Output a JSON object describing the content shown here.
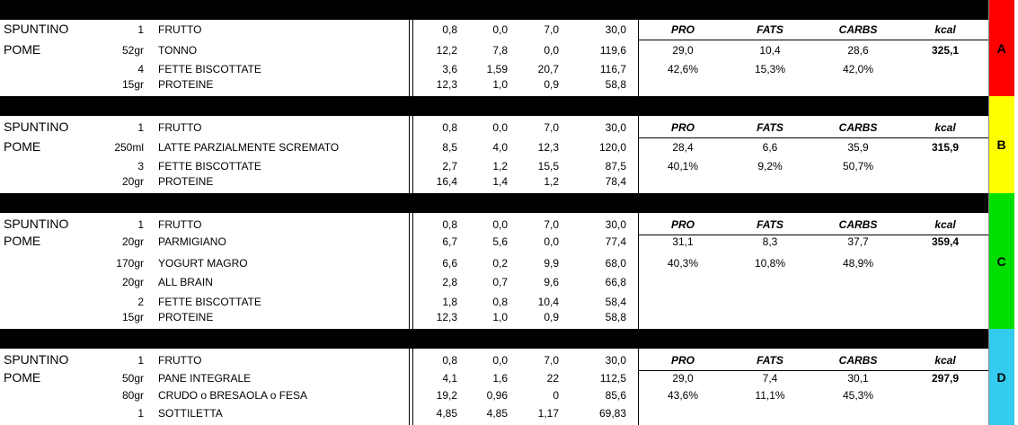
{
  "blocks": [
    {
      "label1": "SPUNTINO",
      "label2": "POME",
      "letter": "A",
      "rows": [
        [
          "1",
          "FRUTTO",
          "0,8",
          "0,0",
          "7,0",
          "30,0"
        ],
        [
          "52gr",
          "TONNO",
          "12,2",
          "7,8",
          "0,0",
          "119,6"
        ],
        [
          "4",
          "FETTE BISCOTTATE",
          "3,6",
          "1,59",
          "20,7",
          "116,7"
        ],
        [
          "15gr",
          "PROTEINE",
          "12,3",
          "1,0",
          "0,9",
          "58,8"
        ]
      ],
      "summary": {
        "headers": [
          "PRO",
          "FATS",
          "CARBS",
          "kcal"
        ],
        "values": [
          "29,0",
          "10,4",
          "28,6",
          "325,1"
        ],
        "percents": [
          "42,6%",
          "15,3%",
          "42,0%"
        ]
      }
    },
    {
      "label1": "SPUNTINO",
      "label2": "POME",
      "letter": "B",
      "rows": [
        [
          "1",
          "FRUTTO",
          "0,8",
          "0,0",
          "7,0",
          "30,0"
        ],
        [
          "250ml",
          "LATTE PARZIALMENTE SCREMATO",
          "8,5",
          "4,0",
          "12,3",
          "120,0"
        ],
        [
          "3",
          "FETTE BISCOTTATE",
          "2,7",
          "1,2",
          "15,5",
          "87,5"
        ],
        [
          "20gr",
          "PROTEINE",
          "16,4",
          "1,4",
          "1,2",
          "78,4"
        ]
      ],
      "summary": {
        "headers": [
          "PRO",
          "FATS",
          "CARBS",
          "kcal"
        ],
        "values": [
          "28,4",
          "6,6",
          "35,9",
          "315,9"
        ],
        "percents": [
          "40,1%",
          "9,2%",
          "50,7%"
        ]
      }
    },
    {
      "label1": "SPUNTINO",
      "label2": "POME",
      "letter": "C",
      "rows": [
        [
          "1",
          "FRUTTO",
          "0,8",
          "0,0",
          "7,0",
          "30,0"
        ],
        [
          "20gr",
          "PARMIGIANO",
          "6,7",
          "5,6",
          "0,0",
          "77,4"
        ],
        [
          "170gr",
          "YOGURT MAGRO",
          "6,6",
          "0,2",
          "9,9",
          "68,0"
        ],
        [
          "20gr",
          "ALL BRAIN",
          "2,8",
          "0,7",
          "9,6",
          "66,8"
        ],
        [
          "2",
          "FETTE BISCOTTATE",
          "1,8",
          "0,8",
          "10,4",
          "58,4"
        ],
        [
          "15gr",
          "PROTEINE",
          "12,3",
          "1,0",
          "0,9",
          "58,8"
        ]
      ],
      "summary": {
        "headers": [
          "PRO",
          "FATS",
          "CARBS",
          "kcal"
        ],
        "values": [
          "31,1",
          "8,3",
          "37,7",
          "359,4"
        ],
        "percents": [
          "40,3%",
          "10,8%",
          "48,9%"
        ]
      }
    },
    {
      "label1": "SPUNTINO",
      "label2": "POME",
      "letter": "D",
      "rows": [
        [
          "1",
          "FRUTTO",
          "0,8",
          "0,0",
          "7,0",
          "30,0"
        ],
        [
          "50gr",
          "PANE INTEGRALE",
          "4,1",
          "1,6",
          "22",
          "112,5"
        ],
        [
          "80gr",
          "CRUDO o BRESAOLA o FESA",
          "19,2",
          "0,96",
          "0",
          "85,6"
        ],
        [
          "1",
          "SOTTILETTA",
          "4,85",
          "4,85",
          "1,17",
          "69,83"
        ]
      ],
      "summary": {
        "headers": [
          "PRO",
          "FATS",
          "CARBS",
          "kcal"
        ],
        "values": [
          "29,0",
          "7,4",
          "30,1",
          "297,9"
        ],
        "percents": [
          "43,6%",
          "11,1%",
          "45,3%"
        ]
      }
    }
  ]
}
